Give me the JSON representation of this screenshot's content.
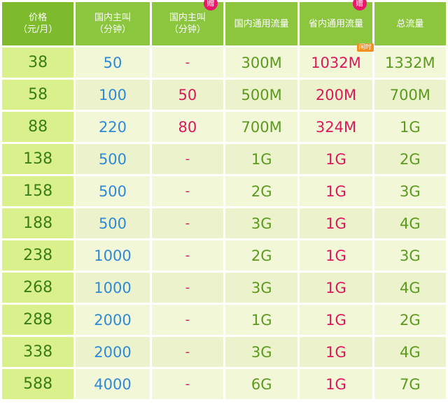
{
  "headers": {
    "price": [
      "价格",
      "（元/月）"
    ],
    "mins": [
      "国内主叫",
      "（分钟）"
    ],
    "bonus_mins": [
      "国内主叫",
      "（分钟）"
    ],
    "national_data": "国内通用流量",
    "provincial_data": "省内通用流量",
    "total_data": "总流量",
    "gift_badge": "赠",
    "idle_badge": "闲时"
  },
  "rows": [
    {
      "price": "38",
      "mins": "50",
      "bonus": "-",
      "national": "300M",
      "provincial": "1032M",
      "total": "1332M"
    },
    {
      "price": "58",
      "mins": "100",
      "bonus": "50",
      "national": "500M",
      "provincial": "200M",
      "total": "700M"
    },
    {
      "price": "88",
      "mins": "220",
      "bonus": "80",
      "national": "700M",
      "provincial": "324M",
      "total": "1G"
    },
    {
      "price": "138",
      "mins": "500",
      "bonus": "-",
      "national": "1G",
      "provincial": "1G",
      "total": "2G"
    },
    {
      "price": "158",
      "mins": "500",
      "bonus": "-",
      "national": "2G",
      "provincial": "1G",
      "total": "3G"
    },
    {
      "price": "188",
      "mins": "500",
      "bonus": "-",
      "national": "3G",
      "provincial": "1G",
      "total": "4G"
    },
    {
      "price": "238",
      "mins": "1000",
      "bonus": "-",
      "national": "2G",
      "provincial": "1G",
      "total": "3G"
    },
    {
      "price": "268",
      "mins": "1000",
      "bonus": "-",
      "national": "3G",
      "provincial": "1G",
      "total": "4G"
    },
    {
      "price": "288",
      "mins": "2000",
      "bonus": "-",
      "national": "1G",
      "provincial": "1G",
      "total": "2G"
    },
    {
      "price": "338",
      "mins": "2000",
      "bonus": "-",
      "national": "3G",
      "provincial": "1G",
      "total": "4G"
    },
    {
      "price": "588",
      "mins": "4000",
      "bonus": "-",
      "national": "6G",
      "provincial": "1G",
      "total": "7G"
    }
  ]
}
